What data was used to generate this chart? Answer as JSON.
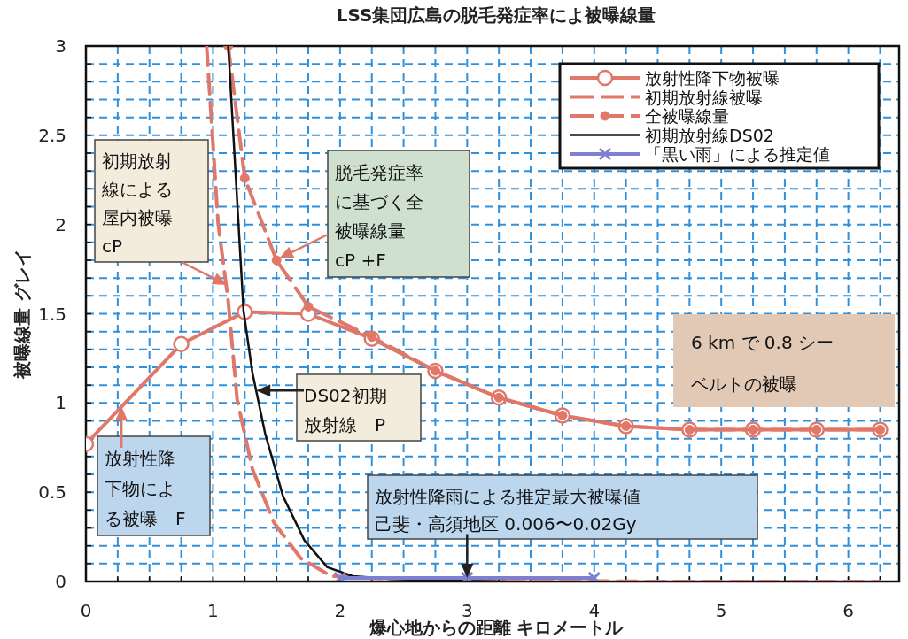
{
  "chart_data": {
    "type": "line",
    "title": "LSS集団広島の脱毛発症率によ被曝線量",
    "xlabel": "爆心地からの距離 キロメートル",
    "ylabel": "被曝線量 グレイ",
    "xlim": [
      0,
      6.4
    ],
    "ylim": [
      0,
      3
    ],
    "xticks": [
      0,
      {
        "value": 0.25,
        "label": null
      },
      {
        "value": 0.5,
        "label": null
      },
      {
        "value": 0.75,
        "label": null
      },
      1,
      {
        "value": 1.25,
        "label": null
      },
      {
        "value": 1.5,
        "label": null
      },
      {
        "value": 1.75,
        "label": null
      },
      2,
      {
        "value": 2.25,
        "label": null
      },
      {
        "value": 2.5,
        "label": null
      },
      {
        "value": 2.75,
        "label": null
      },
      3,
      {
        "value": 3.25,
        "label": null
      },
      {
        "value": 3.5,
        "label": null
      },
      {
        "value": 3.75,
        "label": null
      },
      4,
      {
        "value": 4.25,
        "label": null
      },
      {
        "value": 4.5,
        "label": null
      },
      {
        "value": 4.75,
        "label": null
      },
      5,
      {
        "value": 5.25,
        "label": null
      },
      {
        "value": 5.5,
        "label": null
      },
      {
        "value": 5.75,
        "label": null
      },
      6,
      {
        "value": 6.25,
        "label": null
      }
    ],
    "yticks": [
      0,
      {
        "value": 0.1,
        "label": null
      },
      {
        "value": 0.2,
        "label": null
      },
      {
        "value": 0.3,
        "label": null
      },
      {
        "value": 0.4,
        "label": null
      },
      0.5,
      {
        "value": 0.6,
        "label": null
      },
      {
        "value": 0.7,
        "label": null
      },
      {
        "value": 0.8,
        "label": null
      },
      {
        "value": 0.9,
        "label": null
      },
      1,
      {
        "value": 1.1,
        "label": null
      },
      {
        "value": 1.2,
        "label": null
      },
      {
        "value": 1.3,
        "label": null
      },
      {
        "value": 1.4,
        "label": null
      },
      1.5,
      {
        "value": 1.6,
        "label": null
      },
      {
        "value": 1.7,
        "label": null
      },
      {
        "value": 1.8,
        "label": null
      },
      {
        "value": 1.9,
        "label": null
      },
      2,
      {
        "value": 2.1,
        "label": null
      },
      {
        "value": 2.2,
        "label": null
      },
      {
        "value": 2.3,
        "label": null
      },
      {
        "value": 2.4,
        "label": null
      },
      2.5,
      {
        "value": 2.6,
        "label": null
      },
      {
        "value": 2.7,
        "label": null
      },
      {
        "value": 2.8,
        "label": null
      },
      {
        "value": 2.9,
        "label": null
      },
      3
    ],
    "grid": true,
    "legend": "top right",
    "series": [
      {
        "name": "放射性降下物被曝",
        "color": "#e0786a",
        "marker": "circle",
        "line_style": "solid",
        "x": [
          0,
          0.75,
          1.25,
          1.75,
          2.25,
          2.75,
          3.25,
          3.75,
          4.25,
          4.75,
          5.25,
          5.75,
          6.25
        ],
        "values": [
          0.77,
          1.33,
          1.51,
          1.5,
          1.36,
          1.18,
          1.03,
          0.93,
          0.87,
          0.85,
          0.85,
          0.85,
          0.85
        ]
      },
      {
        "name": "初期放射線被曝",
        "color": "#e0786a",
        "marker": "none",
        "line_style": "dashed",
        "x": [
          0.95,
          1.04,
          1.12,
          1.19,
          1.31,
          1.48,
          1.69,
          1.93,
          2.5,
          3.5,
          4.5,
          5.5,
          6.25
        ],
        "values": [
          3.0,
          2.01,
          1.57,
          1.02,
          0.63,
          0.33,
          0.13,
          0.03,
          0.01,
          0.005,
          0,
          0,
          0
        ]
      },
      {
        "name": "全被曝線量",
        "color": "#e0786a",
        "marker": "circle",
        "line_style": "dashed",
        "x": [
          1.12,
          1.25,
          1.5,
          1.75,
          2.25,
          2.75,
          3.25,
          3.75,
          4.25,
          4.75,
          5.25,
          5.75,
          6.25
        ],
        "values": [
          3.0,
          2.26,
          1.8,
          1.54,
          1.37,
          1.18,
          1.03,
          0.93,
          0.87,
          0.85,
          0.85,
          0.85,
          0.85
        ]
      },
      {
        "name": "初期放射線DS02",
        "color": "#111111",
        "marker": "none",
        "line_style": "solid",
        "x": [
          1.12,
          1.24,
          1.31,
          1.41,
          1.55,
          1.72,
          1.9,
          2.1,
          2.38,
          2.8,
          3.3
        ],
        "values": [
          3.0,
          1.52,
          1.17,
          0.83,
          0.48,
          0.23,
          0.08,
          0.03,
          0.015,
          0.005,
          0
        ]
      },
      {
        "name": "「黒い雨」による推定値",
        "color": "#7f7fd0",
        "marker": "cross",
        "line_style": "solid",
        "x": [
          2,
          3,
          4
        ],
        "values": [
          0.02,
          0.02,
          0.02
        ]
      }
    ],
    "annotations": [
      "初期放射線による屋内被曝 cP",
      "脱毛発症率に基づく全被曝線量 cP +F",
      {
        "text": "DS02初期放射線　P",
        "x": 1.34,
        "y": 1.07
      },
      {
        "text": "放射性降下物による被曝　F",
        "x": 0.28,
        "y": 0.98
      },
      {
        "text": "放射性降雨による推定最大被曝値己斐・高須地区 0.006〜0.02Gy",
        "x": 3.0,
        "y": 0.02
      },
      "6 km で 0.8 シーベルトの被曝"
    ]
  }
}
